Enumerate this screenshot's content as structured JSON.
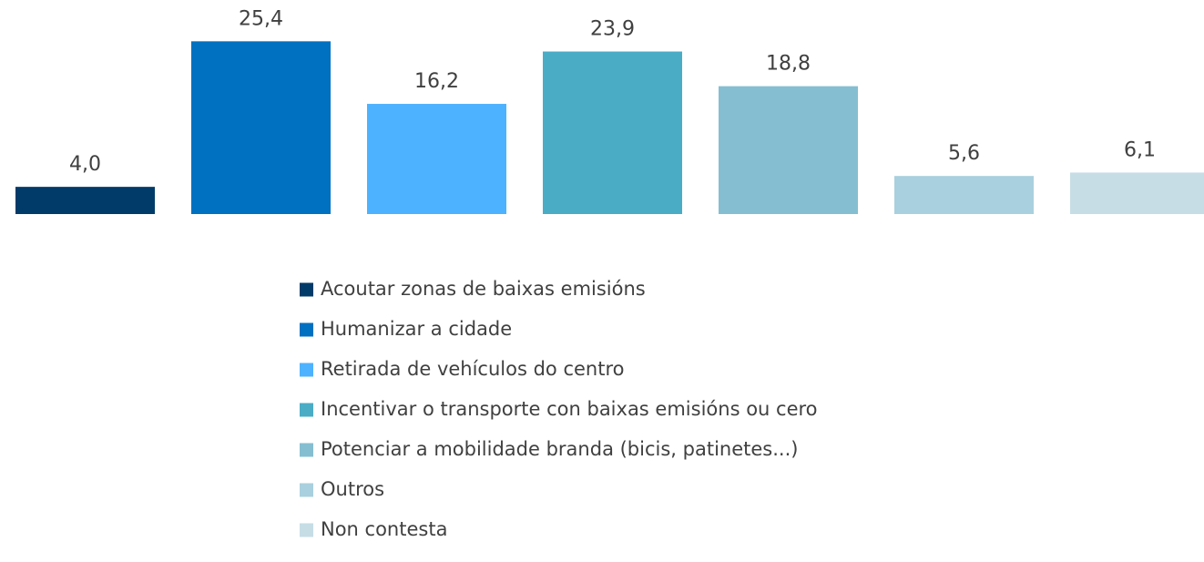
{
  "chart_data": {
    "type": "bar",
    "ylim": [
      0,
      30
    ],
    "series": [
      {
        "name": "Acoutar zonas de baixas emisións",
        "color": "#003b69",
        "values": [
          4.0
        ],
        "value_labels": [
          "4,0"
        ]
      },
      {
        "name": "Humanizar a cidade",
        "color": "#0070c0",
        "values": [
          25.4
        ],
        "value_labels": [
          "25,4"
        ]
      },
      {
        "name": "Retirada de vehículos do centro",
        "color": "#4db2ff",
        "values": [
          16.2
        ],
        "value_labels": [
          "16,2"
        ]
      },
      {
        "name": "Incentivar o transporte con baixas emisións ou cero",
        "color": "#4bacc6",
        "values": [
          23.9
        ],
        "value_labels": [
          "23,9"
        ]
      },
      {
        "name": "Potenciar a mobilidade branda (bicis, patinetes...)",
        "color": "#85bed1",
        "values": [
          18.8
        ],
        "value_labels": [
          "18,8"
        ]
      },
      {
        "name": "Outros",
        "color": "#a9d0de",
        "values": [
          5.6
        ],
        "value_labels": [
          "5,6"
        ]
      },
      {
        "name": "Non contesta",
        "color": "#c6dde6",
        "values": [
          6.1
        ],
        "value_labels": [
          "6,1"
        ]
      }
    ]
  }
}
